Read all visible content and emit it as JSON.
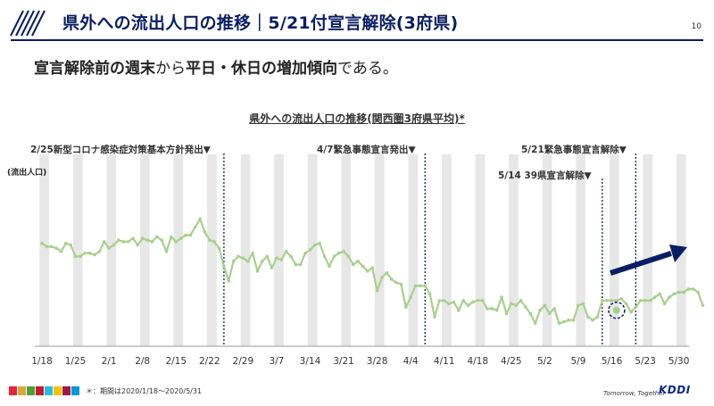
{
  "header": {
    "title": "県外への流出人口の推移｜5/21付宣言解除(3府県)",
    "page_number": "10"
  },
  "subtitle": {
    "part1": "宣言解除前の週末",
    "part2": "から",
    "part3": "平日・休日の増加傾向",
    "part4": "である。"
  },
  "footnote": "＊：期間は2020/1/18～2020/5/31",
  "footer": {
    "tagline": "Tomorrow, Together",
    "logo": "KDDI"
  },
  "colors": {
    "navy": "#0a1f63",
    "line": "#a8d08d",
    "weekend_band": "#e7e7e7",
    "arrow": "#0a1f63"
  },
  "chart_data": {
    "type": "line",
    "title": "県外への流出人口の推移(関西圏3府県平均)*",
    "ylabel": "(流出人口)",
    "x_tick_labels": [
      "1/18",
      "1/25",
      "2/1",
      "2/8",
      "2/15",
      "2/22",
      "2/29",
      "3/7",
      "3/14",
      "3/21",
      "3/28",
      "4/4",
      "4/11",
      "4/18",
      "4/25",
      "5/2",
      "5/9",
      "5/16",
      "5/23",
      "5/30"
    ],
    "x_start": "2020-01-18",
    "x_end": "2020-05-31",
    "ylim": [
      0,
      100
    ],
    "grid": false,
    "events": [
      {
        "label": "2/25新型コロナ感染症対策基本方針発出▼",
        "date": "2020-02-25"
      },
      {
        "label": "4/7緊急事態宣言発出▼",
        "date": "2020-04-07"
      },
      {
        "label": "5/14 39県宣言解除▼",
        "date": "2020-05-14"
      },
      {
        "label": "5/21緊急事態宣言解除▼",
        "date": "2020-05-21"
      }
    ],
    "highlight": {
      "date": "2020-05-17",
      "value": 22
    },
    "series": [
      {
        "values": [
          63,
          61,
          61,
          60,
          58,
          63,
          62,
          55,
          55,
          57,
          57,
          56,
          58,
          64,
          60,
          62,
          65,
          64,
          64,
          66,
          62,
          66,
          65,
          64,
          67,
          65,
          58,
          67,
          64,
          66,
          68,
          68,
          73,
          78,
          70,
          65,
          64,
          60,
          49,
          40,
          52,
          55,
          54,
          52,
          57,
          46,
          52,
          55,
          48,
          54,
          53,
          58,
          55,
          50,
          50,
          57,
          59,
          62,
          63,
          55,
          49,
          55,
          57,
          58,
          55,
          50,
          52,
          49,
          46,
          48,
          34,
          42,
          45,
          41,
          39,
          38,
          24,
          30,
          37,
          37,
          37,
          32,
          18,
          28,
          28,
          26,
          27,
          22,
          28,
          25,
          27,
          28,
          28,
          23,
          23,
          22,
          30,
          20,
          26,
          25,
          28,
          24,
          20,
          14,
          22,
          25,
          20,
          23,
          14,
          15,
          16,
          16,
          25,
          26,
          18,
          16,
          18,
          28,
          28,
          28,
          28,
          29,
          26,
          21,
          24,
          28,
          28,
          28,
          30,
          32,
          26,
          30,
          32,
          33,
          33,
          35,
          35,
          33,
          25
        ]
      }
    ]
  }
}
